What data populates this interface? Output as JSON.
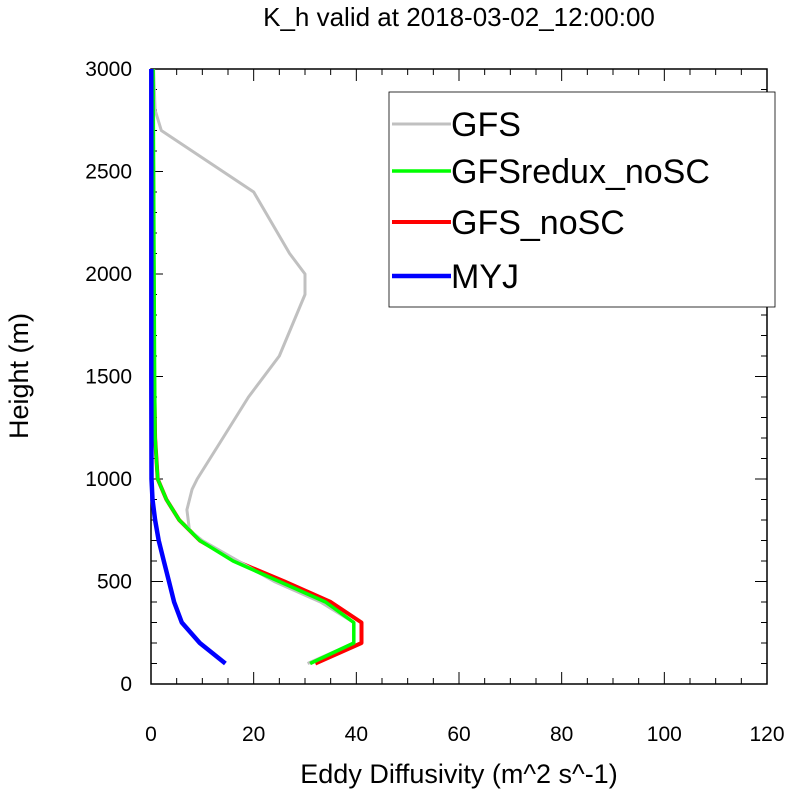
{
  "chart_data": {
    "type": "line",
    "title": "K_h valid at 2018-03-02_12:00:00",
    "xlabel": "Eddy Diffusivity (m^2 s^-1)",
    "ylabel": "Height (m)",
    "xlim": [
      0,
      120
    ],
    "ylim": [
      0,
      3000
    ],
    "x_ticks": [
      "0",
      "20",
      "40",
      "60",
      "80",
      "100",
      "120"
    ],
    "y_ticks": [
      "0",
      "500",
      "1000",
      "1500",
      "2000",
      "2500",
      "3000"
    ],
    "grid": false,
    "legend_position": "top-right",
    "series": [
      {
        "name": "GFS",
        "color": "#c0c0c0",
        "x": [
          30.5,
          39.5,
          39.5,
          33,
          24,
          17,
          10,
          7.5,
          7,
          8,
          9,
          14,
          19,
          25,
          30,
          30,
          27,
          20,
          8,
          2,
          0.8,
          0.5
        ],
        "y": [
          100,
          200,
          300,
          400,
          500,
          600,
          700,
          750,
          850,
          950,
          1000,
          1200,
          1400,
          1600,
          1900,
          2000,
          2100,
          2400,
          2600,
          2700,
          2800,
          3000
        ]
      },
      {
        "name": "GFSredux_noSC",
        "color": "#00ff00",
        "x": [
          31,
          39.5,
          39.5,
          34,
          25,
          16,
          9.5,
          5.5,
          3,
          1.3,
          0.8,
          0.7,
          0.6,
          0.5,
          0.4
        ],
        "y": [
          100,
          200,
          300,
          400,
          500,
          600,
          700,
          800,
          900,
          1000,
          1200,
          1500,
          2000,
          2500,
          3000
        ]
      },
      {
        "name": "GFS_noSC",
        "color": "#ff0000",
        "x": [
          32,
          41,
          41,
          35,
          26,
          16.5,
          9.5,
          5.5,
          3,
          1.3,
          0.8,
          0.6,
          0.5,
          0.4,
          0.3
        ],
        "y": [
          100,
          200,
          300,
          400,
          500,
          600,
          700,
          800,
          900,
          1000,
          1200,
          1500,
          2000,
          2500,
          3000
        ]
      },
      {
        "name": "MYJ",
        "color": "#0000ff",
        "x": [
          14.5,
          9.5,
          6,
          4.5,
          3.5,
          2.5,
          1.5,
          0.8,
          0.3,
          0.1,
          0.05,
          0.05
        ],
        "y": [
          100,
          200,
          300,
          400,
          500,
          600,
          700,
          800,
          900,
          1000,
          1500,
          3000
        ]
      }
    ]
  }
}
